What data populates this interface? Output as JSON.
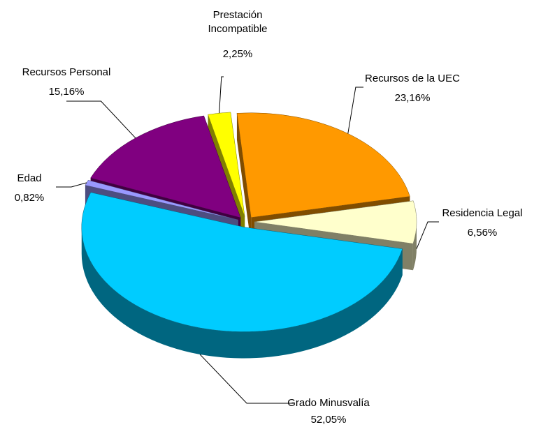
{
  "chart_data": {
    "type": "pie",
    "categories": [
      "Recursos de la UEC",
      "Residencia Legal",
      "Grado Minusvalía",
      "Edad",
      "Recursos Personal",
      "Prestación Incompatible"
    ],
    "values": [
      23.16,
      6.56,
      52.05,
      0.82,
      15.16,
      2.25
    ],
    "value_labels": [
      "23,16%",
      "6,56%",
      "52,05%",
      "0,82%",
      "15,16%",
      "2,25%"
    ],
    "colors": [
      "#FF9900",
      "#FFFFCC",
      "#00CCFF",
      "#9999FF",
      "#800080",
      "#FFFF00"
    ]
  }
}
